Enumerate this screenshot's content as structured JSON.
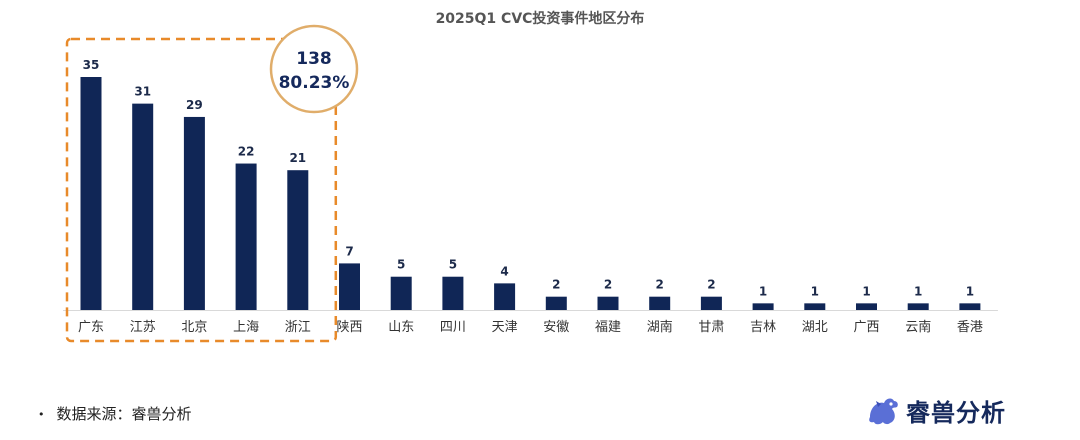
{
  "chart_data": {
    "type": "bar",
    "title": "2025Q1 CVC投资事件地区分布",
    "categories": [
      "广东",
      "江苏",
      "北京",
      "上海",
      "浙江",
      "陕西",
      "山东",
      "四川",
      "天津",
      "安徽",
      "福建",
      "湖南",
      "甘肃",
      "吉林",
      "湖北",
      "广西",
      "云南",
      "香港"
    ],
    "values": [
      35,
      31,
      29,
      22,
      21,
      7,
      5,
      5,
      4,
      2,
      2,
      2,
      2,
      1,
      1,
      1,
      1,
      1
    ],
    "ylim": [
      0,
      35
    ],
    "grid": false,
    "bar_color": "#102656",
    "highlight": {
      "categories": [
        "广东",
        "江苏",
        "北京",
        "上海",
        "浙江"
      ],
      "total": "138",
      "share": "80.23%",
      "box_color": "#e88a2a"
    }
  },
  "footer": {
    "bullet": "•",
    "source": "数据来源：睿兽分析"
  },
  "logo": {
    "icon": "dragon-mascot-icon",
    "text": "睿兽分析",
    "color": "#15295c"
  }
}
